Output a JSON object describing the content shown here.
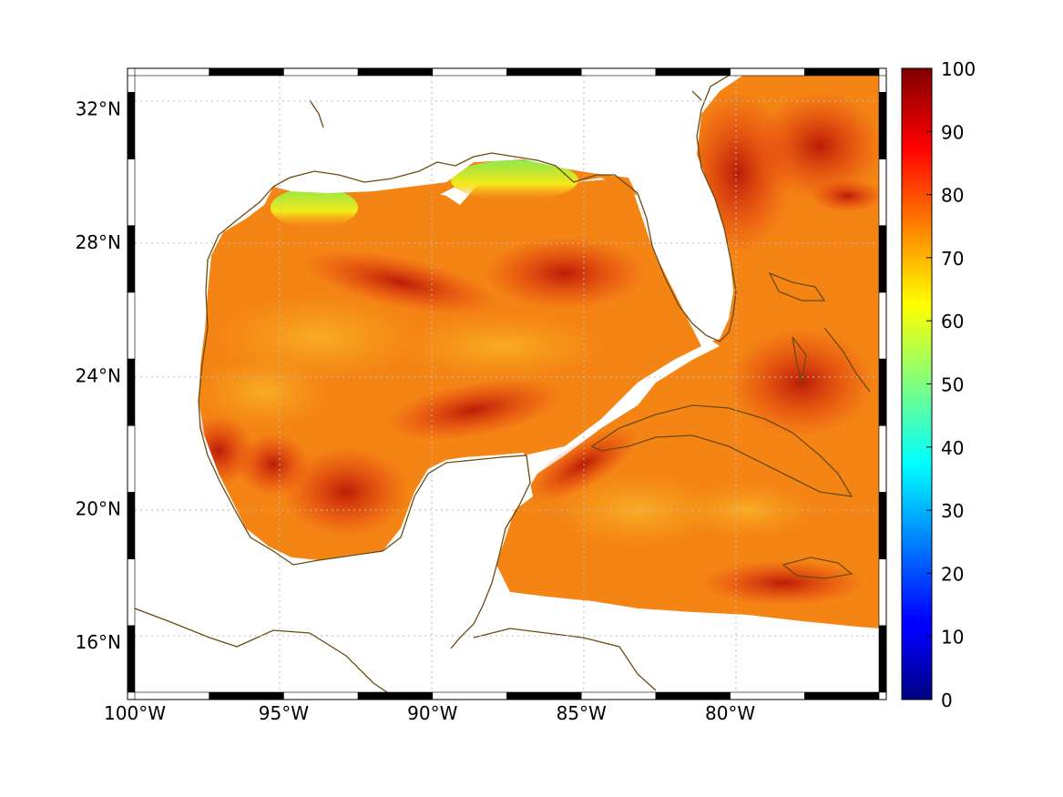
{
  "map": {
    "lon_range": [
      -100,
      -75
    ],
    "lat_range": [
      14.5,
      33
    ],
    "lon_ticks": [
      {
        "value": -100,
        "label": "100°W"
      },
      {
        "value": -95,
        "label": "95°W"
      },
      {
        "value": -90,
        "label": "90°W"
      },
      {
        "value": -85,
        "label": "85°W"
      },
      {
        "value": -80,
        "label": "80°W"
      }
    ],
    "lat_ticks": [
      {
        "value": 32,
        "label": "32°N"
      },
      {
        "value": 28,
        "label": "28°N"
      },
      {
        "value": 24,
        "label": "24°N"
      },
      {
        "value": 20,
        "label": "20°N"
      },
      {
        "value": 16,
        "label": "16°N"
      }
    ],
    "grid": "dotted",
    "frame": "black-white-checkered",
    "coastline_color": "#6b4a12"
  },
  "colorbar": {
    "colormap": "jet",
    "range": [
      0,
      100
    ],
    "tick_labels": [
      "0",
      "10",
      "20",
      "30",
      "40",
      "50",
      "60",
      "70",
      "80",
      "90",
      "100"
    ]
  },
  "field_note_colors": {
    "low_coastal": "#7fe84a",
    "mid": "#f7a21a",
    "high": "#e8220e",
    "max": "#9a0000",
    "land": "#ffffff"
  }
}
